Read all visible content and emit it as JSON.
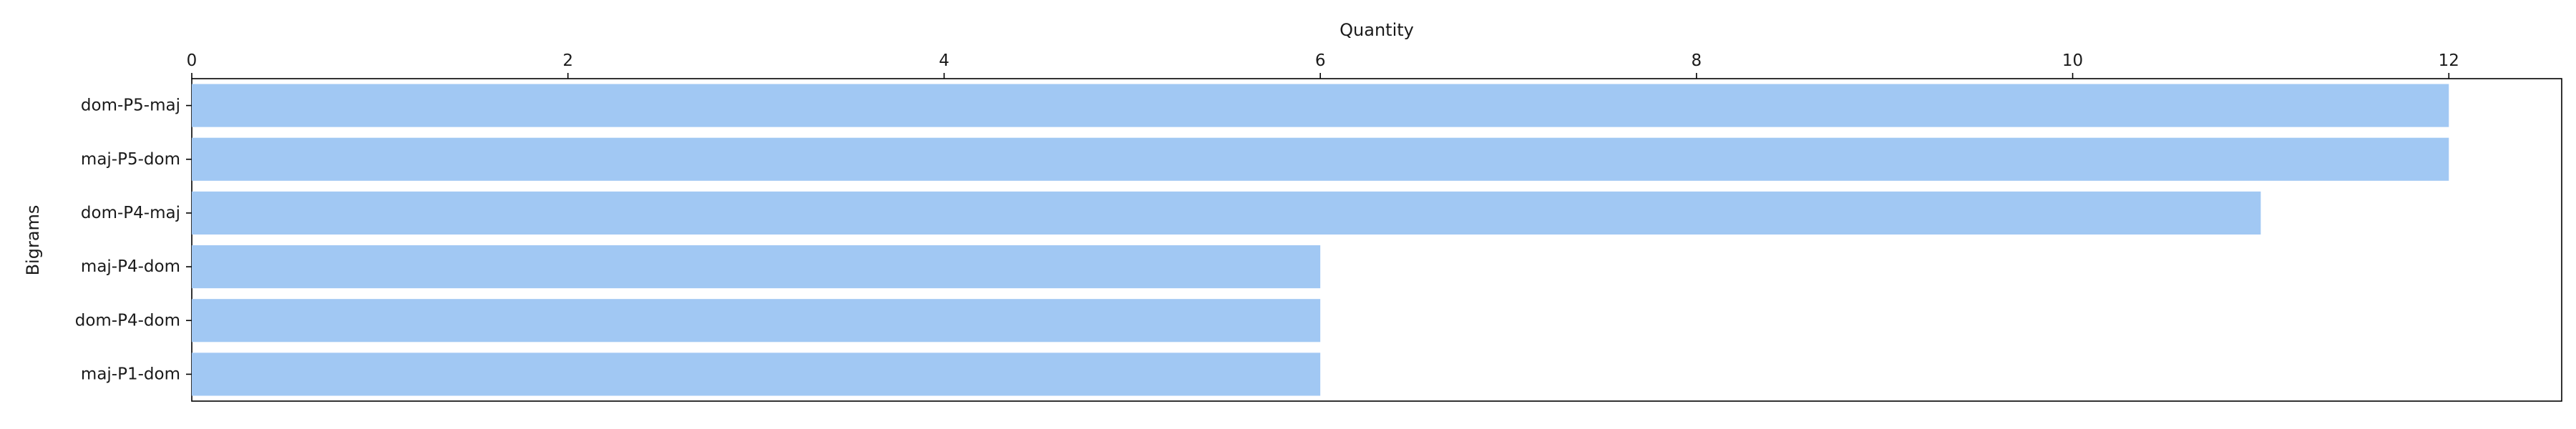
{
  "chart_data": {
    "type": "bar",
    "orientation": "horizontal",
    "title": "",
    "xlabel": "Quantity",
    "ylabel": "Bigrams",
    "xaxis_position": "top",
    "xlim": [
      0,
      12.6
    ],
    "xticks": [
      0,
      2,
      4,
      6,
      8,
      10,
      12
    ],
    "categories": [
      "dom-P5-maj",
      "maj-P5-dom",
      "dom-P4-maj",
      "maj-P4-dom",
      "dom-P4-dom",
      "maj-P1-dom"
    ],
    "values": [
      12,
      12,
      11,
      6,
      6,
      6
    ],
    "bar_color": "#a1c8f3",
    "grid": false,
    "legend": "none"
  }
}
